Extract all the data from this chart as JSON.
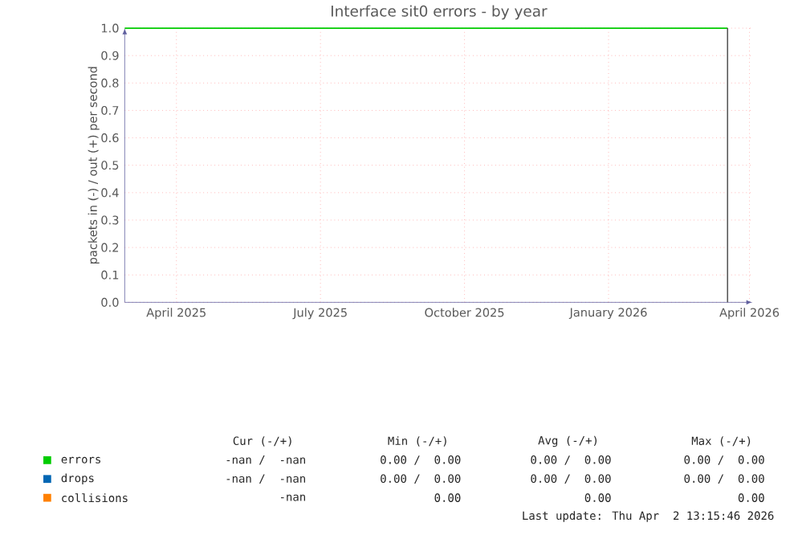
{
  "chart_data": {
    "type": "line",
    "title": "Interface sit0 errors - by year",
    "ylabel": "packets in (-) / out (+) per second",
    "x": [
      "2025-03-13",
      "2026-04-02"
    ],
    "series": [
      {
        "name": "errors",
        "color": "#00cc00",
        "values": [
          1.0,
          1.0
        ]
      },
      {
        "name": "drops",
        "color": "#0066b3",
        "values": [
          null,
          null
        ]
      },
      {
        "name": "collisions",
        "color": "#ff8000",
        "values": [
          null,
          null
        ]
      }
    ],
    "xlim": [
      "2025-03-13",
      "2026-04-18"
    ],
    "xticks": [
      {
        "value": "2025-04-15",
        "label": "April 2025"
      },
      {
        "value": "2025-07-16",
        "label": "July 2025"
      },
      {
        "value": "2025-10-16",
        "label": "October 2025"
      },
      {
        "value": "2026-01-16",
        "label": "January 2026"
      },
      {
        "value": "2026-04-16",
        "label": "April 2026"
      }
    ],
    "ylim": [
      0,
      1.0
    ],
    "yticks": [
      {
        "value": 0,
        "label": "0.0"
      },
      {
        "value": 0.1,
        "label": "0.1"
      },
      {
        "value": 0.2,
        "label": "0.2"
      },
      {
        "value": 0.3,
        "label": "0.3"
      },
      {
        "value": 0.4,
        "label": "0.4"
      },
      {
        "value": 0.5,
        "label": "0.5"
      },
      {
        "value": 0.6,
        "label": "0.6"
      },
      {
        "value": 0.7,
        "label": "0.7"
      },
      {
        "value": 0.8,
        "label": "0.8"
      },
      {
        "value": 0.9,
        "label": "0.9"
      },
      {
        "value": 1.0,
        "label": "1.0"
      }
    ],
    "ref_lines": [
      {
        "axis": "x",
        "value": "2026-04-02",
        "color": "#555555"
      }
    ],
    "grid": true,
    "legend": "bottom",
    "annotations": [
      "Cur (-/+)",
      "Min (-/+)",
      "Avg (-/+)",
      "Max (-/+)",
      "-nan /  -nan",
      "0.00 /  0.00",
      "0.00 /  0.00",
      "0.00 /  0.00",
      "-nan /  -nan",
      "0.00 /  0.00",
      "0.00 /  0.00",
      "0.00 /  0.00",
      "-nan",
      "0.00",
      "0.00",
      "0.00",
      "Last update: Thu Apr  2 13:15:46 2026"
    ]
  }
}
